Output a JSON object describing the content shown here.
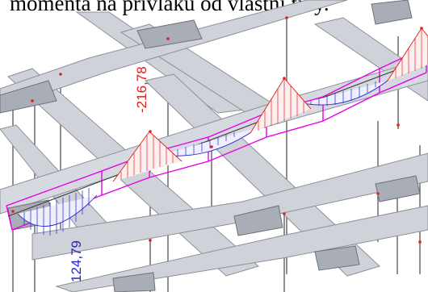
{
  "caption": "momenta na přívlaku od vlastní tíhy.",
  "moment_labels": {
    "negative": "-216,78",
    "positive": "124,79"
  },
  "colors": {
    "beam_fill": "#cfd2d8",
    "beam_node_fill": "#a9adb5",
    "beam_outline": "#8c9096",
    "column_line": "#555555",
    "slab_edge": "#e600e6",
    "negative_moment": "#e01b1b",
    "positive_moment": "#2222cc",
    "node_marker": "#e02020",
    "text": "#000000"
  }
}
